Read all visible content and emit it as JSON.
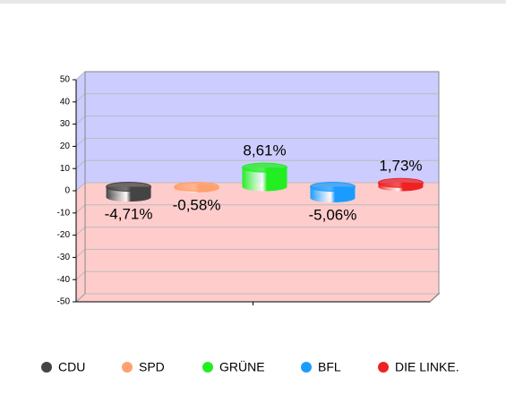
{
  "chart_data": {
    "type": "bar3d",
    "categories": [
      "CDU",
      "SPD",
      "GRÜNE",
      "BFL",
      "DIE LINKE."
    ],
    "values": [
      -4.71,
      -0.58,
      8.61,
      -5.06,
      1.73
    ],
    "value_labels": [
      "-4,71%",
      "-0,58%",
      "8,61%",
      "-5,06%",
      "1,73%"
    ],
    "colors": [
      "#444444",
      "#ffa070",
      "#22ee22",
      "#1a9cff",
      "#ee2222"
    ],
    "ylim": [
      -50,
      50
    ],
    "yticks": [
      -50,
      -40,
      -30,
      -20,
      -10,
      0,
      10,
      20,
      30,
      40,
      50
    ],
    "grid": true,
    "legend": "bottom"
  }
}
